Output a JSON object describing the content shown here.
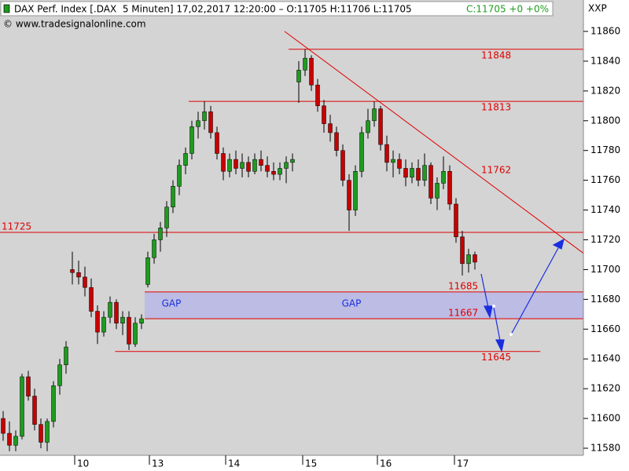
{
  "chart_data": {
    "type": "candlestick",
    "title": "DAX Perf. Index [.DAX  5 Minuten] 17,02,2017 12:20:00 – O:11705 H:11706 L:11705",
    "title_change": "C:11705 +0 +0%",
    "source": "© www.tradesignalonline.com",
    "axis_label": "XXP",
    "up_color": "#1f9b1f",
    "down_color": "#c80000",
    "x": [
      1,
      2,
      3,
      4,
      5,
      6,
      7,
      8,
      9,
      10,
      11,
      12,
      13,
      14,
      15,
      16,
      17,
      18,
      19,
      20,
      21,
      22,
      23,
      24,
      25,
      26,
      27,
      28,
      29,
      30,
      31,
      32,
      33,
      34,
      35,
      36,
      37,
      38,
      39,
      40,
      41,
      42,
      43,
      44,
      45,
      46,
      47,
      48,
      49,
      50,
      51,
      52,
      53,
      54,
      55,
      56,
      57,
      58,
      59,
      60,
      61,
      62,
      63,
      64,
      65,
      66,
      67,
      68,
      69,
      70,
      71,
      72,
      73,
      74,
      75,
      76
    ],
    "open": [
      11600,
      11590,
      11582,
      11588,
      11628,
      11615,
      11596,
      11584,
      11598,
      11622,
      11636,
      11700,
      11698,
      11695,
      11688,
      11672,
      11658,
      11668,
      11678,
      11664,
      11668,
      11650,
      11664,
      11690,
      11708,
      11720,
      11728,
      11742,
      11756,
      11770,
      11778,
      11796,
      11800,
      11806,
      11792,
      11778,
      11766,
      11774,
      11768,
      11772,
      11766,
      11774,
      11770,
      11766,
      11764,
      11768,
      11772,
      11826,
      11834,
      11842,
      11824,
      11810,
      11798,
      11792,
      11780,
      11760,
      11740,
      11766,
      11792,
      11800,
      11808,
      11784,
      11772,
      11774,
      11768,
      11762,
      11768,
      11760,
      11770,
      11748,
      11758,
      11766,
      11744,
      11722,
      11704,
      11710
    ],
    "high": [
      11605,
      11598,
      11592,
      11630,
      11632,
      11620,
      11600,
      11600,
      11625,
      11640,
      11652,
      11712,
      11706,
      11702,
      11694,
      11676,
      11672,
      11682,
      11680,
      11672,
      11672,
      11668,
      11670,
      11712,
      11724,
      11732,
      11746,
      11760,
      11774,
      11782,
      11800,
      11806,
      11813,
      11810,
      11796,
      11782,
      11778,
      11780,
      11778,
      11776,
      11778,
      11780,
      11776,
      11772,
      11772,
      11776,
      11778,
      11840,
      11848,
      11844,
      11828,
      11814,
      11804,
      11796,
      11784,
      11764,
      11770,
      11796,
      11808,
      11813,
      11810,
      11790,
      11780,
      11778,
      11774,
      11772,
      11774,
      11778,
      11772,
      11762,
      11776,
      11770,
      11748,
      11726,
      11714,
      11712
    ],
    "low": [
      11585,
      11578,
      11578,
      11586,
      11612,
      11592,
      11580,
      11578,
      11594,
      11616,
      11630,
      11690,
      11690,
      11682,
      11668,
      11650,
      11655,
      11664,
      11660,
      11656,
      11646,
      11648,
      11660,
      11688,
      11704,
      11712,
      11722,
      11738,
      11750,
      11764,
      11774,
      11788,
      11794,
      11788,
      11774,
      11760,
      11762,
      11764,
      11762,
      11762,
      11764,
      11766,
      11762,
      11760,
      11760,
      11758,
      11766,
      11812,
      11830,
      11820,
      11806,
      11792,
      11786,
      11776,
      11756,
      11726,
      11736,
      11762,
      11788,
      11796,
      11780,
      11766,
      11762,
      11764,
      11756,
      11758,
      11756,
      11756,
      11744,
      11740,
      11754,
      11740,
      11718,
      11696,
      11698,
      11700
    ],
    "close": [
      11590,
      11582,
      11588,
      11628,
      11615,
      11596,
      11584,
      11598,
      11622,
      11636,
      11648,
      11698,
      11695,
      11688,
      11672,
      11658,
      11668,
      11678,
      11664,
      11668,
      11650,
      11664,
      11667,
      11708,
      11720,
      11728,
      11742,
      11756,
      11770,
      11778,
      11796,
      11800,
      11806,
      11792,
      11778,
      11766,
      11774,
      11768,
      11772,
      11766,
      11774,
      11770,
      11766,
      11764,
      11768,
      11772,
      11774,
      11834,
      11842,
      11824,
      11810,
      11798,
      11792,
      11780,
      11760,
      11740,
      11766,
      11792,
      11800,
      11808,
      11784,
      11772,
      11774,
      11768,
      11762,
      11768,
      11760,
      11770,
      11748,
      11758,
      11766,
      11744,
      11722,
      11704,
      11710,
      11705
    ],
    "xlim": [
      0.5,
      93.25
    ],
    "xticks": [
      {
        "value": 12.375,
        "label": "10"
      },
      {
        "value": 24.25,
        "label": "13"
      },
      {
        "value": 36.375,
        "label": "14"
      },
      {
        "value": 48.625,
        "label": "15"
      },
      {
        "value": 60.5,
        "label": "16"
      },
      {
        "value": 72.75,
        "label": "17"
      }
    ],
    "ylim": [
      11570,
      11867
    ],
    "yticks": [
      11580,
      11600,
      11620,
      11640,
      11660,
      11680,
      11700,
      11720,
      11740,
      11760,
      11780,
      11800,
      11820,
      11840,
      11860
    ],
    "hlines": [
      {
        "value": 11848,
        "from": 46.4,
        "to": 93.25
      },
      {
        "value": 11813,
        "from": 30.5,
        "to": 93.25
      },
      {
        "value": 11725,
        "from": 0.5,
        "to": 93.25
      },
      {
        "value": 11685,
        "from": 23.5,
        "to": 93.25
      },
      {
        "value": 11667,
        "from": 23.5,
        "to": 93.25
      },
      {
        "value": 11645,
        "from": 18.8,
        "to": 86.4
      }
    ],
    "line_color": "#e00000",
    "trendline": {
      "label": 11762,
      "x": [
        45.75,
        93.25
      ],
      "y": [
        11860,
        11711
      ]
    },
    "gap": {
      "low": 11667,
      "high": 11685,
      "from": 23.5,
      "to": 93.25,
      "color": "#bcbce4",
      "labels": [
        "GAP",
        "GAP"
      ]
    }
  }
}
